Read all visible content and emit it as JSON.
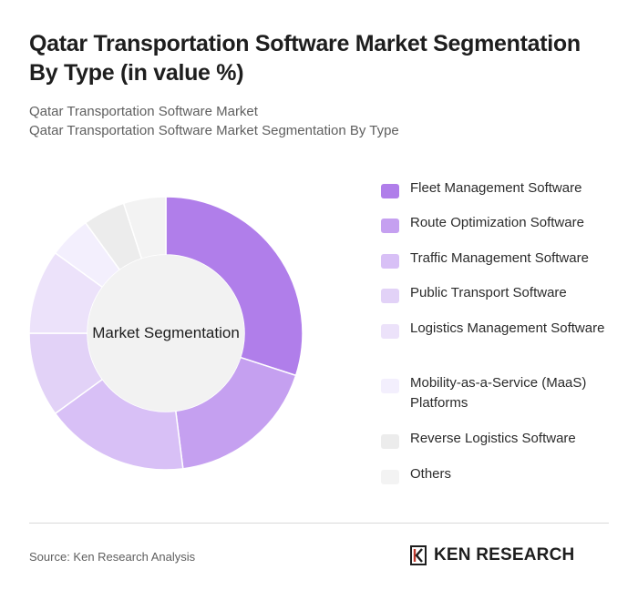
{
  "header": {
    "title": "Qatar Transportation Software Market Segmentation By Type (in value %)",
    "subtitle_line1": "Qatar Transportation Software Market",
    "subtitle_line2": "Qatar Transportation Software Market Segmentation By Type"
  },
  "chart_data": {
    "type": "pie",
    "variant": "donut",
    "center_label": "Market Segmentation",
    "legend_position": "right",
    "categories": [
      "Fleet Management Software",
      "Route Optimization Software",
      "Traffic Management Software",
      "Public Transport Software",
      "Logistics Management Software",
      "Mobility-as-a-Service (MaaS) Platforms",
      "Reverse Logistics Software",
      "Others"
    ],
    "values": [
      30,
      18,
      17,
      10,
      10,
      5,
      5,
      5
    ],
    "colors": [
      "#b07eea",
      "#c5a0f0",
      "#d8c0f6",
      "#e2d2f7",
      "#ece2fa",
      "#f3effd",
      "#ececec",
      "#f3f3f3"
    ]
  },
  "footer": {
    "source": "Source: Ken Research Analysis",
    "brand": "KEN RESEARCH"
  }
}
